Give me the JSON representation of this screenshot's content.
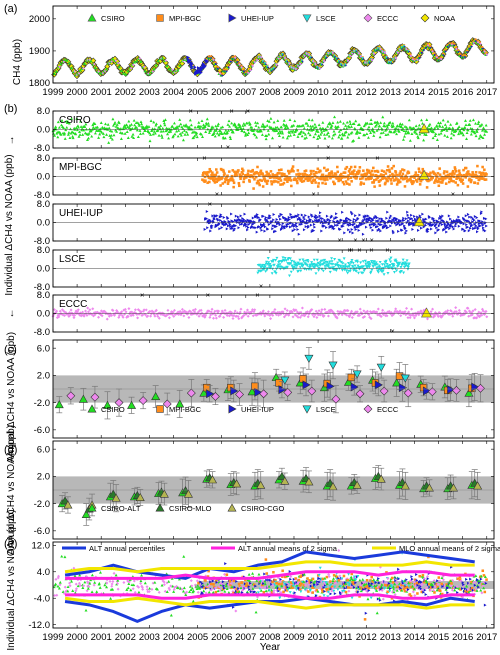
{
  "figure": {
    "panel_labels": [
      "(a)",
      "(b)",
      "(c)",
      "(d)",
      "(e)"
    ],
    "y_label_a": "CH4 (ppb)",
    "y_label_b": "Individual ΔCH4 vs NOAA (ppb)",
    "y_label_cd": "Annual ΔCH4 vs NOAA (ppb)",
    "y_label_e": "Individual ΔCH4 vs NOAA (ppb)",
    "x_label": "Year"
  },
  "colors": {
    "CSIRO": "#22dd22",
    "MPI-BGC": "#ff8c1a",
    "UHEI-IUP": "#1a1acc",
    "LSCE": "#22dddd",
    "ECCC": "#ee88ee",
    "NOAA": "#f2e600",
    "ALT_pct": "#1a3adb",
    "ALT_2sigma": "#ff22dd",
    "MLO_2sigma": "#f2e600",
    "band": "#b8b8b8"
  },
  "chart_data": [
    {
      "panel": "(a)",
      "type": "scatter",
      "x_ticks": [
        "1999",
        "2000",
        "2001",
        "2002",
        "2003",
        "2004",
        "2005",
        "2006",
        "2007",
        "2008",
        "2009",
        "2010",
        "2011",
        "2012",
        "2013",
        "2014",
        "2015",
        "2016",
        "2017"
      ],
      "xlim": [
        1999,
        2017.3
      ],
      "ylabel": "CH4 (ppb)",
      "ylim": [
        1800,
        2040
      ],
      "y_ticks": [
        "1800",
        "1900",
        "2000"
      ],
      "legend": [
        "CSIRO",
        "MPI-BGC",
        "UHEI-IUP",
        "LSCE",
        "ECCC",
        "NOAA"
      ],
      "trend": {
        "start_year": 1999,
        "start_value": 1850,
        "growth_per_year": [
          0,
          1,
          0.5,
          1,
          2,
          0,
          0,
          1,
          6,
          6,
          5,
          5,
          5,
          5,
          5,
          5,
          9,
          7
        ],
        "seasonal_amplitude": 22
      }
    },
    {
      "panel": "(b)",
      "type": "scatter",
      "subpanels": [
        {
          "name": "CSIRO",
          "range": [
            1999,
            2017
          ],
          "ylim": [
            -8,
            8
          ],
          "y_ticks": [
            "8.0",
            "0.0",
            "-8.0"
          ],
          "noaa_mean_marker": {
            "x": 2014.4,
            "y": 0.3
          }
        },
        {
          "name": "MPI-BGC",
          "range": [
            2005.2,
            2017
          ],
          "ylim": [
            -8,
            8
          ],
          "y_ticks": [
            "8.0",
            "0.0",
            "-8.0"
          ],
          "noaa_mean_marker": {
            "x": 2014.4,
            "y": 0.5
          }
        },
        {
          "name": "UHEI-IUP",
          "range": [
            2005.3,
            2017
          ],
          "ylim": [
            -8,
            8
          ],
          "y_ticks": [
            "8.0",
            "0.0",
            "-8.0"
          ],
          "noaa_mean_marker": {
            "x": 2014.2,
            "y": 0.3
          }
        },
        {
          "name": "LSCE",
          "range": [
            2007.5,
            2013.8
          ],
          "ylim": [
            -8,
            8
          ],
          "y_ticks": [
            "8.0",
            "0.0",
            "-8.0"
          ]
        },
        {
          "name": "ECCC",
          "range": [
            1999,
            2017
          ],
          "ylim": [
            -8,
            8
          ],
          "y_ticks": [
            "8.0",
            "0.0",
            "-8.0"
          ],
          "noaa_mean_marker": {
            "x": 2014.5,
            "y": 0.2
          }
        }
      ]
    },
    {
      "panel": "(c)",
      "type": "scatter",
      "ylabel": "Annual ΔCH4 vs NOAA (ppb)",
      "ylim": [
        -7.2,
        7.2
      ],
      "y_ticks": [
        "6.0",
        "2.0",
        "-2.0",
        "-6.0"
      ],
      "band": [
        -2,
        2
      ],
      "legend": [
        "CSIRO",
        "MPI-BGC",
        "UHEI-IUP",
        "LSCE",
        "ECCC"
      ],
      "series": [
        {
          "name": "CSIRO",
          "x": [
            1999,
            2000,
            2001,
            2002,
            2003,
            2004,
            2005,
            2006,
            2007,
            2008,
            2009,
            2010,
            2011,
            2012,
            2013,
            2014,
            2015,
            2016
          ],
          "y": [
            -2.3,
            -1.5,
            -2.4,
            -2.4,
            -1.1,
            -2.2,
            -0.6,
            -0.1,
            -0.4,
            1.7,
            0.9,
            0.2,
            1.0,
            1.3,
            0.9,
            0.7,
            0.3,
            -0.6
          ]
        },
        {
          "name": "MPI-BGC",
          "x": [
            2005,
            2006,
            2007,
            2008,
            2009,
            2010,
            2011,
            2012,
            2013,
            2014,
            2015,
            2016
          ],
          "y": [
            0.2,
            0.2,
            0.4,
            0.9,
            1.5,
            0.8,
            1.7,
            0.9,
            1.9,
            0.2,
            -0.2,
            0.1
          ]
        },
        {
          "name": "UHEI-IUP",
          "x": [
            2005,
            2006,
            2007,
            2008,
            2009,
            2010,
            2011,
            2012,
            2013,
            2014,
            2015,
            2016
          ],
          "y": [
            -0.7,
            -0.3,
            -0.5,
            -0.1,
            0.6,
            0.4,
            0.3,
            0.6,
            0.2,
            -0.3,
            -0.1,
            0.3
          ]
        },
        {
          "name": "LSCE",
          "x": [
            2008,
            2009,
            2010,
            2011,
            2012,
            2013
          ],
          "y": [
            1.3,
            4.5,
            3.5,
            2.2,
            3.2,
            1.6
          ]
        },
        {
          "name": "ECCC",
          "x": [
            1999,
            2000,
            2001,
            2002,
            2003,
            2004,
            2005,
            2006,
            2007,
            2008,
            2009,
            2010,
            2011,
            2012,
            2013,
            2014,
            2015,
            2016
          ],
          "y": [
            -1.0,
            -1.2,
            -2.0,
            -1.7,
            -2.2,
            -0.6,
            -1.1,
            -0.8,
            -0.7,
            -0.5,
            -0.3,
            -1.5,
            -0.7,
            -0.3,
            -0.6,
            -0.4,
            -0.2,
            0.1
          ]
        }
      ]
    },
    {
      "panel": "(d)",
      "type": "scatter",
      "ylabel": "Annual ΔCH4 vs NOAA (ppb)",
      "ylim": [
        -7.2,
        7.2
      ],
      "y_ticks": [
        "6.0",
        "2.0",
        "-2.0",
        "-6.0"
      ],
      "band": [
        -2,
        2
      ],
      "legend": [
        "CSIRO-ALT",
        "CSIRO-MLO",
        "CSIRO-CGO"
      ],
      "series": [
        {
          "name": "CSIRO-ALT",
          "x": [
            1999,
            2000,
            2001,
            2002,
            2003,
            2004,
            2005,
            2006,
            2007,
            2008,
            2009,
            2010,
            2011,
            2012,
            2013,
            2014,
            2015,
            2016
          ],
          "y": [
            -2.0,
            -3.6,
            -1.0,
            -1.0,
            -0.5,
            -0.4,
            1.6,
            0.8,
            0.6,
            1.5,
            1.3,
            0.6,
            0.6,
            1.7,
            0.7,
            0.2,
            0.2,
            0.7
          ]
        },
        {
          "name": "CSIRO-MLO",
          "x": [
            1999,
            2000,
            2001,
            2002,
            2003,
            2004,
            2005,
            2006,
            2007,
            2008,
            2009,
            2010,
            2011,
            2012,
            2013,
            2014,
            2015,
            2016
          ],
          "y": [
            -1.6,
            -2.8,
            -0.6,
            -0.8,
            -0.3,
            -0.1,
            1.8,
            1.1,
            1.0,
            2.0,
            1.7,
            1.0,
            1.1,
            2.0,
            1.1,
            0.6,
            0.6,
            1.0
          ]
        },
        {
          "name": "CSIRO-CGO",
          "x": [
            1999,
            2000,
            2001,
            2002,
            2003,
            2004,
            2005,
            2006,
            2007,
            2008,
            2009,
            2010,
            2011,
            2012,
            2013,
            2014,
            2015,
            2016
          ],
          "y": [
            -2.2,
            -2.2,
            -1.2,
            -1.1,
            -0.6,
            -0.6,
            1.5,
            0.9,
            0.7,
            1.3,
            1.2,
            0.5,
            0.7,
            1.6,
            0.6,
            0.3,
            0.3,
            0.6
          ]
        }
      ]
    },
    {
      "panel": "(e)",
      "type": "line",
      "ylabel": "Individual ΔCH4 vs NOAA (ppb)",
      "ylim": [
        -13,
        13
      ],
      "y_ticks": [
        "12.0",
        "4.0",
        "-4.0",
        "-12.0"
      ],
      "legend": [
        "ALT annual percentiles",
        "ALT annual means of 2 sigma",
        "MLO annual means of 2 sigma"
      ],
      "x": [
        1999,
        2000,
        2001,
        2002,
        2003,
        2004,
        2005,
        2006,
        2007,
        2008,
        2009,
        2010,
        2011,
        2012,
        2013,
        2014,
        2015,
        2016
      ],
      "series": [
        {
          "name": "ALT annual percentiles",
          "y": [
            3,
            4,
            6,
            4,
            3,
            2,
            5,
            4,
            6,
            7,
            10,
            9,
            8,
            9,
            10,
            9,
            8,
            7
          ]
        },
        {
          "name": "ALT annual percentiles",
          "y": [
            -5,
            -6,
            -8,
            -11,
            -8,
            -6,
            -7,
            -6,
            -5,
            -5,
            -4,
            -5,
            -6,
            -6,
            -5,
            -6,
            -4,
            -5
          ]
        },
        {
          "name": "ALT annual means of 2 sigma",
          "y": [
            2,
            2,
            2,
            2,
            2,
            3,
            2,
            2,
            2,
            3,
            4,
            4,
            4,
            3,
            4,
            4,
            3,
            3
          ]
        },
        {
          "name": "ALT annual means of 2 sigma",
          "y": [
            -3,
            -3,
            -3,
            -3,
            -4,
            -4,
            -3,
            -3,
            -3,
            -3,
            -4,
            -4,
            -3,
            -3,
            -4,
            -4,
            -3,
            -3
          ]
        },
        {
          "name": "MLO annual means of 2 sigma",
          "y": [
            4,
            5,
            5,
            4,
            5,
            5,
            5,
            5,
            5,
            6,
            7,
            7,
            6,
            6,
            6,
            7,
            6,
            6
          ]
        },
        {
          "name": "MLO annual means of 2 sigma",
          "y": [
            -4,
            -5,
            -5,
            -4,
            -5,
            -6,
            -5,
            -5,
            -5,
            -6,
            -7,
            -6,
            -6,
            -6,
            -6,
            -7,
            -6,
            -6
          ]
        }
      ]
    }
  ]
}
